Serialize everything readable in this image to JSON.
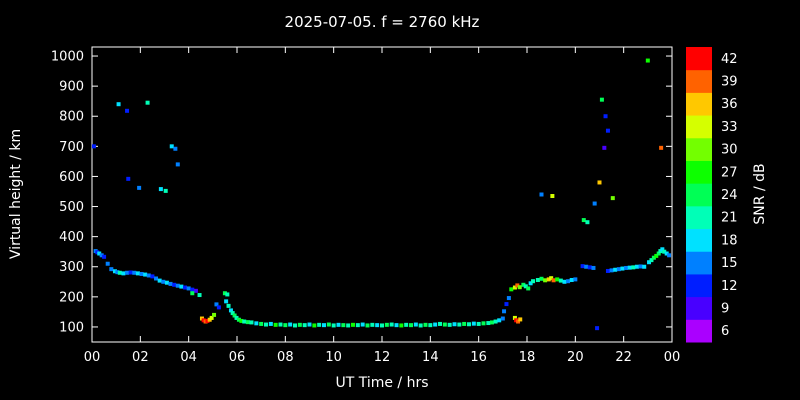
{
  "colors": {
    "background": "#000000",
    "foreground": "#ffffff"
  },
  "chart_data": {
    "type": "scatter",
    "title": "2025-07-05. f = 2760 kHz",
    "xlabel": "UT Time / hrs",
    "ylabel": "Virtual height / km",
    "xlim": [
      0,
      24
    ],
    "ylim": [
      50,
      1030
    ],
    "grid": false,
    "x_ticks": {
      "values": [
        0,
        2,
        4,
        6,
        8,
        10,
        12,
        14,
        16,
        18,
        20,
        22,
        24
      ],
      "labels": [
        "00",
        "02",
        "04",
        "06",
        "08",
        "10",
        "12",
        "14",
        "16",
        "18",
        "20",
        "22",
        "00"
      ]
    },
    "y_ticks": {
      "values": [
        100,
        200,
        300,
        400,
        500,
        600,
        700,
        800,
        900,
        1000
      ],
      "labels": [
        "100",
        "200",
        "300",
        "400",
        "500",
        "600",
        "700",
        "800",
        "900",
        "1000"
      ]
    },
    "colorbar": {
      "label": "SNR / dB",
      "min": 4.5,
      "max": 43.5,
      "ticks": [
        6,
        9,
        12,
        15,
        18,
        21,
        24,
        27,
        30,
        33,
        36,
        39,
        42
      ]
    },
    "points": [
      [
        0.08,
        700,
        12
      ],
      [
        0.15,
        352,
        15
      ],
      [
        0.22,
        348,
        12
      ],
      [
        0.3,
        344,
        18
      ],
      [
        0.4,
        338,
        15
      ],
      [
        0.5,
        333,
        12
      ],
      [
        0.65,
        310,
        15
      ],
      [
        0.8,
        292,
        15
      ],
      [
        0.95,
        285,
        18
      ],
      [
        1.05,
        282,
        15
      ],
      [
        1.15,
        280,
        21
      ],
      [
        1.3,
        278,
        18
      ],
      [
        1.45,
        280,
        15
      ],
      [
        1.6,
        281,
        12
      ],
      [
        1.75,
        280,
        15
      ],
      [
        1.9,
        278,
        18
      ],
      [
        2.05,
        276,
        15
      ],
      [
        2.2,
        274,
        18
      ],
      [
        2.35,
        271,
        15
      ],
      [
        2.5,
        268,
        12
      ],
      [
        2.65,
        261,
        15
      ],
      [
        2.8,
        254,
        18
      ],
      [
        2.95,
        250,
        15
      ],
      [
        3.1,
        247,
        18
      ],
      [
        3.25,
        243,
        15
      ],
      [
        3.4,
        240,
        12
      ],
      [
        3.55,
        237,
        15
      ],
      [
        3.7,
        234,
        18
      ],
      [
        3.85,
        231,
        12
      ],
      [
        4.0,
        228,
        15
      ],
      [
        4.15,
        224,
        12
      ],
      [
        4.3,
        220,
        9
      ],
      [
        4.15,
        212,
        24
      ],
      [
        4.45,
        206,
        21
      ],
      [
        1.1,
        840,
        18
      ],
      [
        1.45,
        818,
        12
      ],
      [
        2.3,
        845,
        21
      ],
      [
        1.5,
        592,
        12
      ],
      [
        1.95,
        562,
        15
      ],
      [
        2.85,
        558,
        18
      ],
      [
        3.05,
        552,
        21
      ],
      [
        3.3,
        700,
        18
      ],
      [
        3.45,
        692,
        15
      ],
      [
        3.55,
        640,
        15
      ],
      [
        4.55,
        128,
        36
      ],
      [
        4.62,
        122,
        42
      ],
      [
        4.7,
        118,
        39
      ],
      [
        4.78,
        120,
        42
      ],
      [
        4.87,
        124,
        36
      ],
      [
        4.95,
        130,
        33
      ],
      [
        5.05,
        140,
        30
      ],
      [
        5.15,
        175,
        15
      ],
      [
        5.25,
        165,
        12
      ],
      [
        5.5,
        212,
        24
      ],
      [
        5.6,
        208,
        21
      ],
      [
        5.55,
        185,
        18
      ],
      [
        5.65,
        170,
        21
      ],
      [
        5.75,
        155,
        18
      ],
      [
        5.82,
        146,
        21
      ],
      [
        5.9,
        138,
        24
      ],
      [
        5.98,
        130,
        21
      ],
      [
        6.08,
        124,
        24
      ],
      [
        6.18,
        120,
        27
      ],
      [
        6.3,
        118,
        21
      ],
      [
        6.45,
        116,
        24
      ],
      [
        6.6,
        115,
        21
      ],
      [
        6.8,
        112,
        18
      ],
      [
        7.0,
        110,
        24
      ],
      [
        7.2,
        108,
        21
      ],
      [
        7.4,
        110,
        18
      ],
      [
        7.6,
        107,
        27
      ],
      [
        7.8,
        108,
        21
      ],
      [
        8.0,
        106,
        24
      ],
      [
        8.2,
        108,
        18
      ],
      [
        8.4,
        105,
        21
      ],
      [
        8.6,
        107,
        24
      ],
      [
        8.8,
        106,
        21
      ],
      [
        9.0,
        108,
        18
      ],
      [
        9.2,
        105,
        27
      ],
      [
        9.4,
        107,
        21
      ],
      [
        9.6,
        106,
        18
      ],
      [
        9.8,
        108,
        24
      ],
      [
        10.0,
        105,
        21
      ],
      [
        10.2,
        107,
        18
      ],
      [
        10.4,
        106,
        24
      ],
      [
        10.6,
        105,
        21
      ],
      [
        10.8,
        107,
        27
      ],
      [
        11.0,
        106,
        21
      ],
      [
        11.2,
        108,
        18
      ],
      [
        11.4,
        105,
        24
      ],
      [
        11.6,
        107,
        21
      ],
      [
        11.8,
        106,
        18
      ],
      [
        12.0,
        105,
        21
      ],
      [
        12.2,
        107,
        24
      ],
      [
        12.4,
        108,
        21
      ],
      [
        12.6,
        106,
        18
      ],
      [
        12.8,
        105,
        27
      ],
      [
        13.0,
        107,
        21
      ],
      [
        13.2,
        106,
        24
      ],
      [
        13.4,
        108,
        18
      ],
      [
        13.6,
        105,
        21
      ],
      [
        13.8,
        107,
        24
      ],
      [
        14.0,
        106,
        21
      ],
      [
        14.2,
        108,
        18
      ],
      [
        14.4,
        110,
        21
      ],
      [
        14.6,
        108,
        24
      ],
      [
        14.8,
        107,
        21
      ],
      [
        15.0,
        109,
        18
      ],
      [
        15.2,
        108,
        21
      ],
      [
        15.4,
        110,
        24
      ],
      [
        15.6,
        109,
        21
      ],
      [
        15.8,
        111,
        18
      ],
      [
        16.0,
        110,
        21
      ],
      [
        16.2,
        112,
        24
      ],
      [
        16.4,
        113,
        21
      ],
      [
        16.55,
        115,
        24
      ],
      [
        16.7,
        118,
        21
      ],
      [
        16.85,
        122,
        18
      ],
      [
        17.0,
        128,
        15
      ],
      [
        17.05,
        152,
        15
      ],
      [
        17.15,
        176,
        12
      ],
      [
        17.25,
        196,
        15
      ],
      [
        17.5,
        130,
        33
      ],
      [
        17.55,
        122,
        42
      ],
      [
        17.63,
        118,
        39
      ],
      [
        17.72,
        125,
        36
      ],
      [
        17.35,
        225,
        27
      ],
      [
        17.5,
        231,
        33
      ],
      [
        17.6,
        238,
        39
      ],
      [
        17.7,
        232,
        30
      ],
      [
        17.85,
        240,
        24
      ],
      [
        17.95,
        235,
        21
      ],
      [
        18.05,
        228,
        24
      ],
      [
        18.15,
        245,
        18
      ],
      [
        18.25,
        252,
        21
      ],
      [
        18.45,
        256,
        21
      ],
      [
        18.6,
        260,
        24
      ],
      [
        18.75,
        255,
        30
      ],
      [
        18.9,
        258,
        36
      ],
      [
        19.0,
        262,
        33
      ],
      [
        19.1,
        255,
        39
      ],
      [
        19.25,
        258,
        27
      ],
      [
        19.4,
        254,
        21
      ],
      [
        19.55,
        250,
        18
      ],
      [
        19.7,
        252,
        15
      ],
      [
        19.85,
        256,
        18
      ],
      [
        20.0,
        258,
        15
      ],
      [
        20.3,
        302,
        12
      ],
      [
        20.45,
        300,
        15
      ],
      [
        20.6,
        298,
        12
      ],
      [
        20.75,
        296,
        15
      ],
      [
        20.9,
        96,
        12
      ],
      [
        21.35,
        286,
        12
      ],
      [
        21.5,
        288,
        15
      ],
      [
        21.65,
        290,
        18
      ],
      [
        21.8,
        292,
        15
      ],
      [
        21.95,
        294,
        18
      ],
      [
        22.1,
        296,
        15
      ],
      [
        22.25,
        297,
        18
      ],
      [
        22.4,
        298,
        21
      ],
      [
        22.55,
        300,
        18
      ],
      [
        22.7,
        301,
        15
      ],
      [
        22.85,
        300,
        18
      ],
      [
        23.05,
        315,
        18
      ],
      [
        23.15,
        322,
        21
      ],
      [
        23.25,
        330,
        24
      ],
      [
        23.35,
        336,
        27
      ],
      [
        23.45,
        344,
        24
      ],
      [
        23.52,
        352,
        21
      ],
      [
        23.6,
        358,
        18
      ],
      [
        23.68,
        350,
        21
      ],
      [
        23.78,
        344,
        18
      ],
      [
        23.88,
        338,
        15
      ],
      [
        18.6,
        540,
        15
      ],
      [
        19.05,
        535,
        33
      ],
      [
        20.35,
        455,
        24
      ],
      [
        20.5,
        448,
        21
      ],
      [
        20.8,
        510,
        15
      ],
      [
        21.0,
        580,
        36
      ],
      [
        21.1,
        855,
        24
      ],
      [
        21.25,
        800,
        12
      ],
      [
        21.35,
        752,
        12
      ],
      [
        21.2,
        695,
        9
      ],
      [
        21.55,
        528,
        30
      ],
      [
        23.0,
        985,
        27
      ],
      [
        23.55,
        695,
        39
      ]
    ]
  }
}
